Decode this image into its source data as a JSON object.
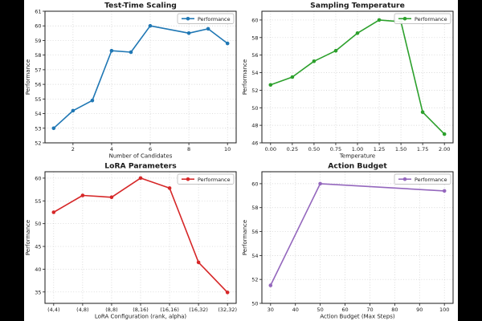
{
  "figure": {
    "background": "#000000",
    "panel_background": "#ffffff",
    "grid_color": "#cccccc",
    "spine_color": "#1a1a1a",
    "text_color": "#1a1a1a",
    "legend_border_color": "#b0b0b0"
  },
  "chart_data": [
    {
      "id": "test-time-scaling",
      "type": "line",
      "title": "Test-Time Scaling",
      "xlabel": "Number of Candidates",
      "ylabel": "Performance",
      "legend_label": "Performance",
      "legend_position": "upper right",
      "color": "#1f77b4",
      "grid": true,
      "x": [
        1,
        2,
        3,
        4,
        5,
        6,
        8,
        9,
        10
      ],
      "y": [
        53.0,
        54.2,
        54.9,
        58.3,
        58.2,
        60.0,
        59.5,
        59.8,
        58.8
      ],
      "xlim": [
        0.55,
        10.45
      ],
      "ylim": [
        52,
        61
      ],
      "xticks": [
        2,
        4,
        6,
        8,
        10
      ],
      "xtick_labels": [
        "2",
        "4",
        "6",
        "8",
        "10"
      ],
      "yticks": [
        52,
        53,
        54,
        55,
        56,
        57,
        58,
        59,
        60,
        61
      ],
      "ytick_labels": [
        "52",
        "53",
        "54",
        "55",
        "56",
        "57",
        "58",
        "59",
        "60",
        "61"
      ]
    },
    {
      "id": "sampling-temperature",
      "type": "line",
      "title": "Sampling Temperature",
      "xlabel": "Temperature",
      "ylabel": "Performance",
      "legend_label": "Performance",
      "legend_position": "upper right",
      "color": "#2ca02c",
      "grid": true,
      "x": [
        0,
        0.25,
        0.5,
        0.75,
        1.0,
        1.25,
        1.5,
        1.75,
        2.0
      ],
      "y": [
        52.6,
        53.5,
        55.3,
        56.5,
        58.5,
        60.0,
        59.8,
        49.5,
        47.0
      ],
      "xlim": [
        -0.1,
        2.1
      ],
      "ylim": [
        46,
        61
      ],
      "xticks": [
        0,
        0.25,
        0.5,
        0.75,
        1.0,
        1.25,
        1.5,
        1.75,
        2.0
      ],
      "xtick_labels": [
        "0.00",
        "0.25",
        "0.50",
        "0.75",
        "1.00",
        "1.25",
        "1.50",
        "1.75",
        "2.00"
      ],
      "yticks": [
        46,
        48,
        50,
        52,
        54,
        56,
        58,
        60
      ],
      "ytick_labels": [
        "46",
        "48",
        "50",
        "52",
        "54",
        "56",
        "58",
        "60"
      ]
    },
    {
      "id": "lora-parameters",
      "type": "line",
      "title": "LoRA Parameters",
      "xlabel": "LoRA Configuration (rank, alpha)",
      "ylabel": "Performance",
      "legend_label": "Performance",
      "legend_position": "upper right",
      "color": "#d62728",
      "grid": true,
      "categories": [
        "(4,4)",
        "(4,8)",
        "(8,8)",
        "(8,16)",
        "(16,16)",
        "(16,32)",
        "(32,32)"
      ],
      "y": [
        52.5,
        56.2,
        55.8,
        60.0,
        57.8,
        41.5,
        34.9
      ],
      "xlim": [
        -0.3,
        6.3
      ],
      "ylim": [
        32.5,
        61.4
      ],
      "yticks": [
        35,
        40,
        45,
        50,
        55,
        60
      ],
      "ytick_labels": [
        "35",
        "40",
        "45",
        "50",
        "55",
        "60"
      ]
    },
    {
      "id": "action-budget",
      "type": "line",
      "title": "Action Budget",
      "xlabel": "Action Budget (Max Steps)",
      "ylabel": "Performance",
      "legend_label": "Performance",
      "legend_position": "upper right",
      "color": "#9467bd",
      "grid": true,
      "x": [
        30,
        50,
        100
      ],
      "y": [
        51.5,
        60.0,
        59.4
      ],
      "xlim": [
        26.5,
        103.5
      ],
      "ylim": [
        50,
        61
      ],
      "xticks": [
        30,
        40,
        50,
        60,
        70,
        80,
        90,
        100
      ],
      "xtick_labels": [
        "30",
        "40",
        "50",
        "60",
        "70",
        "80",
        "90",
        "100"
      ],
      "yticks": [
        50,
        52,
        54,
        56,
        58,
        60
      ],
      "ytick_labels": [
        "50",
        "52",
        "54",
        "56",
        "58",
        "60"
      ]
    }
  ]
}
